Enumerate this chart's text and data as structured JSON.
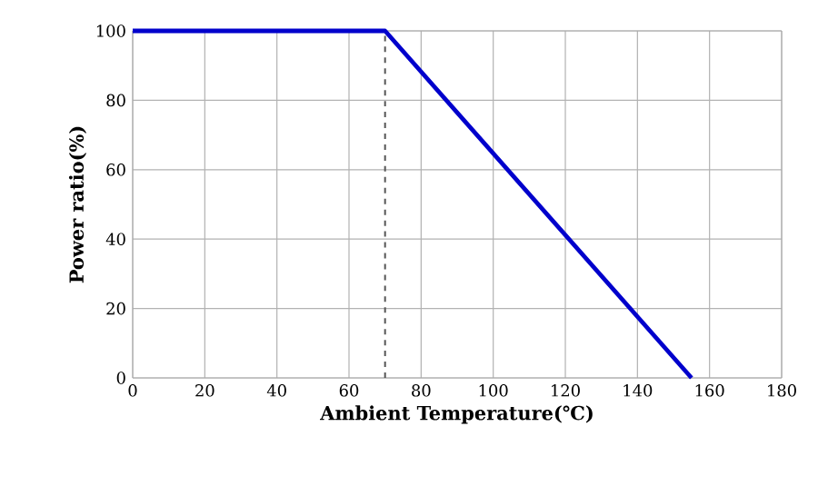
{
  "chart_data": {
    "type": "line",
    "xlabel": "Ambient Temperature(℃)",
    "ylabel": "Power ratio(%)",
    "x": [
      0,
      70,
      155
    ],
    "series": [
      {
        "color": "#0000cc",
        "values": [
          100,
          100,
          0
        ]
      }
    ],
    "xlim": [
      0,
      180
    ],
    "xticks": [
      0,
      20,
      40,
      60,
      80,
      100,
      120,
      140,
      160,
      180
    ],
    "ylim": [
      0,
      100
    ],
    "yticks": [
      0,
      20,
      40,
      60,
      80,
      100
    ],
    "grid": true,
    "marker": "none",
    "line_style": "solid",
    "ref_lines": [
      {
        "axis": "x",
        "value": 70,
        "color": "#555555",
        "line_style": "dashed"
      }
    ]
  }
}
